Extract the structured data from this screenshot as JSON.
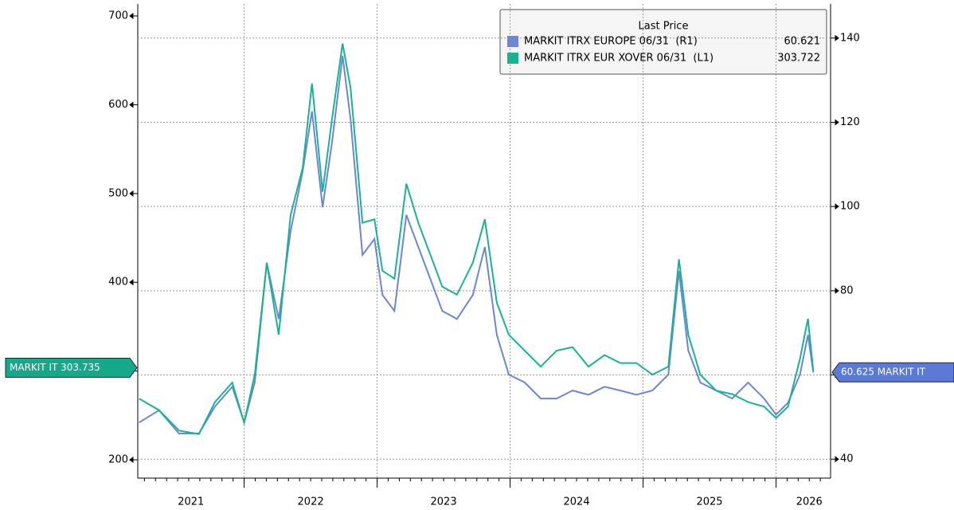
{
  "chart_data": {
    "type": "line",
    "legend_title": "Last Price",
    "x": [
      2021.21,
      2021.36,
      2021.51,
      2021.66,
      2021.78,
      2021.91,
      2022.0,
      2022.08,
      2022.17,
      2022.26,
      2022.35,
      2022.44,
      2022.51,
      2022.59,
      2022.66,
      2022.74,
      2022.8,
      2022.89,
      2022.98,
      2023.04,
      2023.13,
      2023.22,
      2023.31,
      2023.4,
      2023.49,
      2023.6,
      2023.72,
      2023.81,
      2023.9,
      2023.99,
      2024.11,
      2024.23,
      2024.35,
      2024.47,
      2024.59,
      2024.71,
      2024.83,
      2024.95,
      2025.07,
      2025.19,
      2025.27,
      2025.34,
      2025.43,
      2025.55,
      2025.67,
      2025.79,
      2025.91,
      2026.0,
      2026.09,
      2026.18,
      2026.24,
      2026.28
    ],
    "series": [
      {
        "name": "MARKIT ITRX EUROPE 06/31  (R1)",
        "last_value": "60.621",
        "color": "#6b86d9",
        "axis": "y2",
        "values": [
          48.7,
          51.6,
          46.1,
          46.1,
          52.5,
          57.2,
          48.7,
          58.2,
          86.6,
          73.3,
          94.2,
          108.4,
          122.6,
          99.8,
          115,
          135.8,
          120.7,
          88.5,
          92.3,
          79,
          75.2,
          98,
          90.4,
          82.8,
          75.2,
          73.3,
          79,
          90.4,
          69.5,
          60.1,
          58.2,
          54.4,
          54.4,
          56.3,
          55.3,
          57.2,
          56.3,
          55.3,
          56.3,
          60.1,
          84.7,
          65.8,
          58.2,
          56.3,
          54.4,
          58.2,
          54.4,
          50.6,
          53.4,
          60.1,
          69.5,
          60.6
        ]
      },
      {
        "name": "MARKIT ITRX EUR XOVER 06/31  (L1)",
        "last_value": "303.722",
        "color": "#17b393",
        "axis": "y",
        "values": [
          269,
          256,
          233,
          229,
          265,
          287,
          242,
          296,
          422,
          341,
          476,
          529,
          624,
          502,
          583,
          669,
          619,
          467,
          471,
          413,
          404,
          511,
          467,
          431,
          395,
          386,
          422,
          471,
          377,
          341,
          323,
          305,
          323,
          327,
          305,
          318,
          309,
          309,
          296,
          305,
          426,
          341,
          296,
          278,
          274,
          265,
          260,
          247,
          260,
          314,
          359,
          300
        ]
      }
    ],
    "xlim": [
      2021.2,
      2026.41
    ],
    "xticks": [
      {
        "value": 2021.6,
        "label": "2021"
      },
      {
        "value": 2022.5,
        "label": "2022"
      },
      {
        "value": 2023.5,
        "label": "2023"
      },
      {
        "value": 2024.5,
        "label": "2024"
      },
      {
        "value": 2025.5,
        "label": "2025"
      },
      {
        "value": 2026.25,
        "label": "2026"
      }
    ],
    "x_separators": [
      2022,
      2023,
      2024,
      2025,
      2026
    ],
    "ylim": [
      179.4,
      713.5
    ],
    "yticks": [
      200,
      300,
      400,
      500,
      600,
      700
    ],
    "y2lim": [
      35.5,
      148.1
    ],
    "y2ticks": [
      40,
      60,
      80,
      100,
      120,
      140
    ],
    "grid": true,
    "tags": [
      {
        "value": 303.735,
        "label": "MARKIT IT 303.735",
        "axis": "y",
        "color": "#17a88a"
      },
      {
        "value": 60.625,
        "label": "60.625 MARKIT IT",
        "axis": "y2",
        "color": "#5b7ad6"
      }
    ]
  }
}
